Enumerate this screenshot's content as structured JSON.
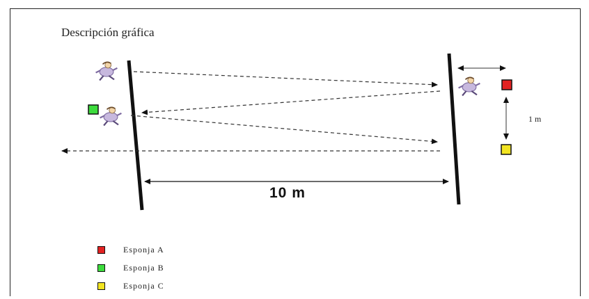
{
  "diagram": {
    "title": "Descripción gráfica",
    "distance_label": "10 m",
    "gap_label": "1 m"
  },
  "legend": [
    {
      "label": "Esponja A",
      "color": "#e32222"
    },
    {
      "label": "Esponja B",
      "color": "#3ddc3d"
    },
    {
      "label": "Esponja C",
      "color": "#f2e421"
    }
  ],
  "colors": {
    "line": "#111111",
    "runner_shirt": "#c7b8de",
    "runner_head": "#f3d5a8"
  }
}
